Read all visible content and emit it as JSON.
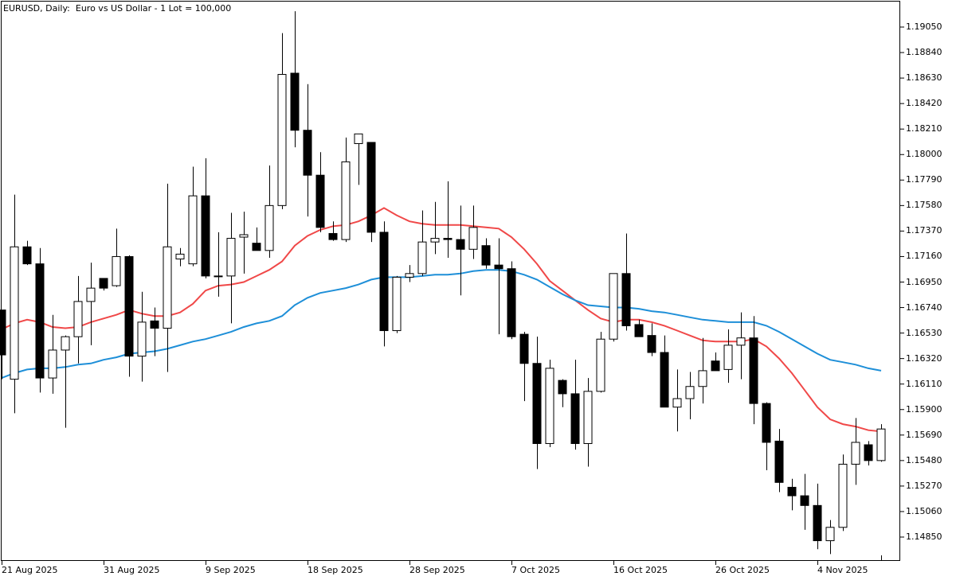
{
  "window": {
    "title": "EURUSD, Daily:  Euro vs US Dollar - 1 Lot = 100,000"
  },
  "colors": {
    "background": "#ffffff",
    "candle_bull_fill": "#ffffff",
    "candle_bear_fill": "#000000",
    "candle_outline": "#000000",
    "ma_fast": "#f04848",
    "ma_slow": "#1e8fd8",
    "axis": "#000000"
  },
  "chart_data": {
    "type": "candlestick",
    "title": "EURUSD, Daily:  Euro vs US Dollar - 1 Lot = 100,000",
    "symbol": "EURUSD",
    "timeframe": "Daily",
    "xlabel": "",
    "ylabel": "",
    "ylim": [
      1.147,
      1.1925
    ],
    "grid": false,
    "y_ticks": [
      "1.19050",
      "1.18840",
      "1.18630",
      "1.18420",
      "1.18210",
      "1.18000",
      "1.17790",
      "1.17580",
      "1.17370",
      "1.17160",
      "1.16950",
      "1.16740",
      "1.16530",
      "1.16320",
      "1.16110",
      "1.15900",
      "1.15690",
      "1.15480",
      "1.15270",
      "1.15060",
      "1.14850"
    ],
    "x_ticks": [
      {
        "label": "21 Aug 2025",
        "index": 0
      },
      {
        "label": "31 Aug 2025",
        "index": 8
      },
      {
        "label": "9 Sep 2025",
        "index": 16
      },
      {
        "label": "18 Sep 2025",
        "index": 24
      },
      {
        "label": "28 Sep 2025",
        "index": 32
      },
      {
        "label": "7 Oct 2025",
        "index": 40
      },
      {
        "label": "16 Oct 2025",
        "index": 48
      },
      {
        "label": "26 Oct 2025",
        "index": 56
      },
      {
        "label": "4 Nov 2025",
        "index": 64
      }
    ],
    "candles_pixel_note": "OHLC values estimated from pixel positions",
    "candles": [
      {
        "o": 1.1672,
        "h": 1.1672,
        "l": 1.1615,
        "c": 1.1635
      },
      {
        "o": 1.1615,
        "h": 1.1767,
        "l": 1.1587,
        "c": 1.1724
      },
      {
        "o": 1.1724,
        "h": 1.1729,
        "l": 1.1709,
        "c": 1.171
      },
      {
        "o": 1.171,
        "h": 1.1723,
        "l": 1.1604,
        "c": 1.1616
      },
      {
        "o": 1.1616,
        "h": 1.1668,
        "l": 1.1603,
        "c": 1.1639
      },
      {
        "o": 1.1639,
        "h": 1.1651,
        "l": 1.1575,
        "c": 1.165
      },
      {
        "o": 1.165,
        "h": 1.17,
        "l": 1.1628,
        "c": 1.1679
      },
      {
        "o": 1.1679,
        "h": 1.1711,
        "l": 1.1643,
        "c": 1.169
      },
      {
        "o": 1.1698,
        "h": 1.1698,
        "l": 1.1688,
        "c": 1.169
      },
      {
        "o": 1.1692,
        "h": 1.1739,
        "l": 1.1691,
        "c": 1.1716
      },
      {
        "o": 1.1716,
        "h": 1.1717,
        "l": 1.1617,
        "c": 1.1634
      },
      {
        "o": 1.1634,
        "h": 1.1687,
        "l": 1.1613,
        "c": 1.1662
      },
      {
        "o": 1.1663,
        "h": 1.1674,
        "l": 1.1634,
        "c": 1.1657
      },
      {
        "o": 1.1657,
        "h": 1.1776,
        "l": 1.1621,
        "c": 1.1724
      },
      {
        "o": 1.1714,
        "h": 1.1723,
        "l": 1.1708,
        "c": 1.1718
      },
      {
        "o": 1.171,
        "h": 1.179,
        "l": 1.1708,
        "c": 1.1766
      },
      {
        "o": 1.1766,
        "h": 1.1797,
        "l": 1.1698,
        "c": 1.17
      },
      {
        "o": 1.17,
        "h": 1.1736,
        "l": 1.1683,
        "c": 1.17
      },
      {
        "o": 1.17,
        "h": 1.1752,
        "l": 1.1661,
        "c": 1.1731
      },
      {
        "o": 1.1732,
        "h": 1.1753,
        "l": 1.1702,
        "c": 1.1734
      },
      {
        "o": 1.1727,
        "h": 1.174,
        "l": 1.1721,
        "c": 1.1721
      },
      {
        "o": 1.1721,
        "h": 1.1791,
        "l": 1.1715,
        "c": 1.1758
      },
      {
        "o": 1.1758,
        "h": 1.19,
        "l": 1.1755,
        "c": 1.1866
      },
      {
        "o": 1.1867,
        "h": 1.1918,
        "l": 1.1806,
        "c": 1.182
      },
      {
        "o": 1.182,
        "h": 1.1858,
        "l": 1.1749,
        "c": 1.1783
      },
      {
        "o": 1.1783,
        "h": 1.1802,
        "l": 1.1736,
        "c": 1.174
      },
      {
        "o": 1.1735,
        "h": 1.1745,
        "l": 1.1729,
        "c": 1.173
      },
      {
        "o": 1.173,
        "h": 1.1814,
        "l": 1.1728,
        "c": 1.1794
      },
      {
        "o": 1.1809,
        "h": 1.1817,
        "l": 1.1775,
        "c": 1.1817
      },
      {
        "o": 1.181,
        "h": 1.181,
        "l": 1.1728,
        "c": 1.1736
      },
      {
        "o": 1.1736,
        "h": 1.1745,
        "l": 1.1642,
        "c": 1.1655
      },
      {
        "o": 1.1655,
        "h": 1.17,
        "l": 1.1653,
        "c": 1.1699
      },
      {
        "o": 1.1699,
        "h": 1.1709,
        "l": 1.1695,
        "c": 1.1702
      },
      {
        "o": 1.1702,
        "h": 1.1754,
        "l": 1.17,
        "c": 1.1728
      },
      {
        "o": 1.1728,
        "h": 1.1761,
        "l": 1.1718,
        "c": 1.1731
      },
      {
        "o": 1.1731,
        "h": 1.1778,
        "l": 1.1715,
        "c": 1.173
      },
      {
        "o": 1.173,
        "h": 1.1758,
        "l": 1.1684,
        "c": 1.1722
      },
      {
        "o": 1.1722,
        "h": 1.1758,
        "l": 1.1714,
        "c": 1.174
      },
      {
        "o": 1.1725,
        "h": 1.1731,
        "l": 1.1706,
        "c": 1.1709
      },
      {
        "o": 1.1709,
        "h": 1.1731,
        "l": 1.1652,
        "c": 1.1706
      },
      {
        "o": 1.1706,
        "h": 1.1712,
        "l": 1.1648,
        "c": 1.165
      },
      {
        "o": 1.1652,
        "h": 1.1654,
        "l": 1.1597,
        "c": 1.1628
      },
      {
        "o": 1.1628,
        "h": 1.165,
        "l": 1.1541,
        "c": 1.1562
      },
      {
        "o": 1.1562,
        "h": 1.1631,
        "l": 1.1559,
        "c": 1.1624
      },
      {
        "o": 1.1614,
        "h": 1.1615,
        "l": 1.1592,
        "c": 1.1603
      },
      {
        "o": 1.1603,
        "h": 1.1631,
        "l": 1.1557,
        "c": 1.1562
      },
      {
        "o": 1.1562,
        "h": 1.1616,
        "l": 1.1543,
        "c": 1.1605
      },
      {
        "o": 1.1605,
        "h": 1.1654,
        "l": 1.1604,
        "c": 1.1648
      },
      {
        "o": 1.1648,
        "h": 1.17,
        "l": 1.1646,
        "c": 1.1702
      },
      {
        "o": 1.1702,
        "h": 1.1735,
        "l": 1.1655,
        "c": 1.1659
      },
      {
        "o": 1.166,
        "h": 1.1664,
        "l": 1.1654,
        "c": 1.165
      },
      {
        "o": 1.1651,
        "h": 1.1661,
        "l": 1.1634,
        "c": 1.1637
      },
      {
        "o": 1.1637,
        "h": 1.1651,
        "l": 1.1592,
        "c": 1.1592
      },
      {
        "o": 1.1592,
        "h": 1.1623,
        "l": 1.1572,
        "c": 1.1599
      },
      {
        "o": 1.1599,
        "h": 1.1621,
        "l": 1.1582,
        "c": 1.1609
      },
      {
        "o": 1.1609,
        "h": 1.1649,
        "l": 1.1595,
        "c": 1.1622
      },
      {
        "o": 1.163,
        "h": 1.1637,
        "l": 1.1626,
        "c": 1.1622
      },
      {
        "o": 1.1623,
        "h": 1.1656,
        "l": 1.1612,
        "c": 1.1643
      },
      {
        "o": 1.1643,
        "h": 1.167,
        "l": 1.1615,
        "c": 1.1649
      },
      {
        "o": 1.1649,
        "h": 1.1667,
        "l": 1.1578,
        "c": 1.1595
      },
      {
        "o": 1.1595,
        "h": 1.1596,
        "l": 1.154,
        "c": 1.1563
      },
      {
        "o": 1.1564,
        "h": 1.1574,
        "l": 1.1522,
        "c": 1.153
      },
      {
        "o": 1.1526,
        "h": 1.1533,
        "l": 1.1507,
        "c": 1.1519
      },
      {
        "o": 1.1519,
        "h": 1.1537,
        "l": 1.1491,
        "c": 1.1511
      },
      {
        "o": 1.1511,
        "h": 1.1529,
        "l": 1.1475,
        "c": 1.1482
      },
      {
        "o": 1.1482,
        "h": 1.1499,
        "l": 1.1471,
        "c": 1.1493
      },
      {
        "o": 1.1493,
        "h": 1.1553,
        "l": 1.149,
        "c": 1.1545
      },
      {
        "o": 1.1545,
        "h": 1.1583,
        "l": 1.1528,
        "c": 1.1563
      },
      {
        "o": 1.1561,
        "h": 1.1564,
        "l": 1.1544,
        "c": 1.1548
      },
      {
        "o": 1.1548,
        "h": 1.1578,
        "l": 1.1547,
        "c": 1.1574
      }
    ],
    "series": [
      {
        "name": "MA fast (red)",
        "color": "#f04848",
        "values": [
          1.1656,
          1.1661,
          1.1664,
          1.1662,
          1.1658,
          1.1657,
          1.1658,
          1.1662,
          1.1665,
          1.1668,
          1.1672,
          1.1669,
          1.1667,
          1.1667,
          1.167,
          1.1677,
          1.1688,
          1.1692,
          1.1693,
          1.1695,
          1.17,
          1.1705,
          1.1712,
          1.1725,
          1.1733,
          1.1738,
          1.1741,
          1.1742,
          1.1745,
          1.175,
          1.1756,
          1.175,
          1.1745,
          1.1743,
          1.1742,
          1.1742,
          1.1742,
          1.1741,
          1.174,
          1.1739,
          1.1732,
          1.1722,
          1.171,
          1.1696,
          1.1688,
          1.168,
          1.1672,
          1.1665,
          1.1662,
          1.1664,
          1.1664,
          1.1662,
          1.1659,
          1.1655,
          1.1651,
          1.1647,
          1.1646,
          1.1646,
          1.1646,
          1.1648,
          1.1642,
          1.1632,
          1.162,
          1.1606,
          1.1592,
          1.1582,
          1.1578,
          1.1576,
          1.1573,
          1.1572
        ]
      },
      {
        "name": "MA slow (blue)",
        "color": "#1e8fd8",
        "values": [
          1.1616,
          1.162,
          1.1623,
          1.1624,
          1.1624,
          1.1625,
          1.1627,
          1.1628,
          1.1631,
          1.1633,
          1.1636,
          1.1637,
          1.1638,
          1.164,
          1.1643,
          1.1646,
          1.1648,
          1.1651,
          1.1654,
          1.1658,
          1.1661,
          1.1663,
          1.1667,
          1.1676,
          1.1682,
          1.1686,
          1.1688,
          1.169,
          1.1693,
          1.1697,
          1.1699,
          1.1699,
          1.1699,
          1.17,
          1.1701,
          1.1701,
          1.1702,
          1.1704,
          1.1705,
          1.1705,
          1.1704,
          1.1701,
          1.1697,
          1.1691,
          1.1685,
          1.168,
          1.1676,
          1.1675,
          1.1674,
          1.1674,
          1.1673,
          1.1671,
          1.167,
          1.1668,
          1.1666,
          1.1664,
          1.1663,
          1.1662,
          1.1662,
          1.1662,
          1.1659,
          1.1654,
          1.1648,
          1.1642,
          1.1636,
          1.1631,
          1.1629,
          1.1627,
          1.1624,
          1.1622
        ]
      }
    ]
  }
}
